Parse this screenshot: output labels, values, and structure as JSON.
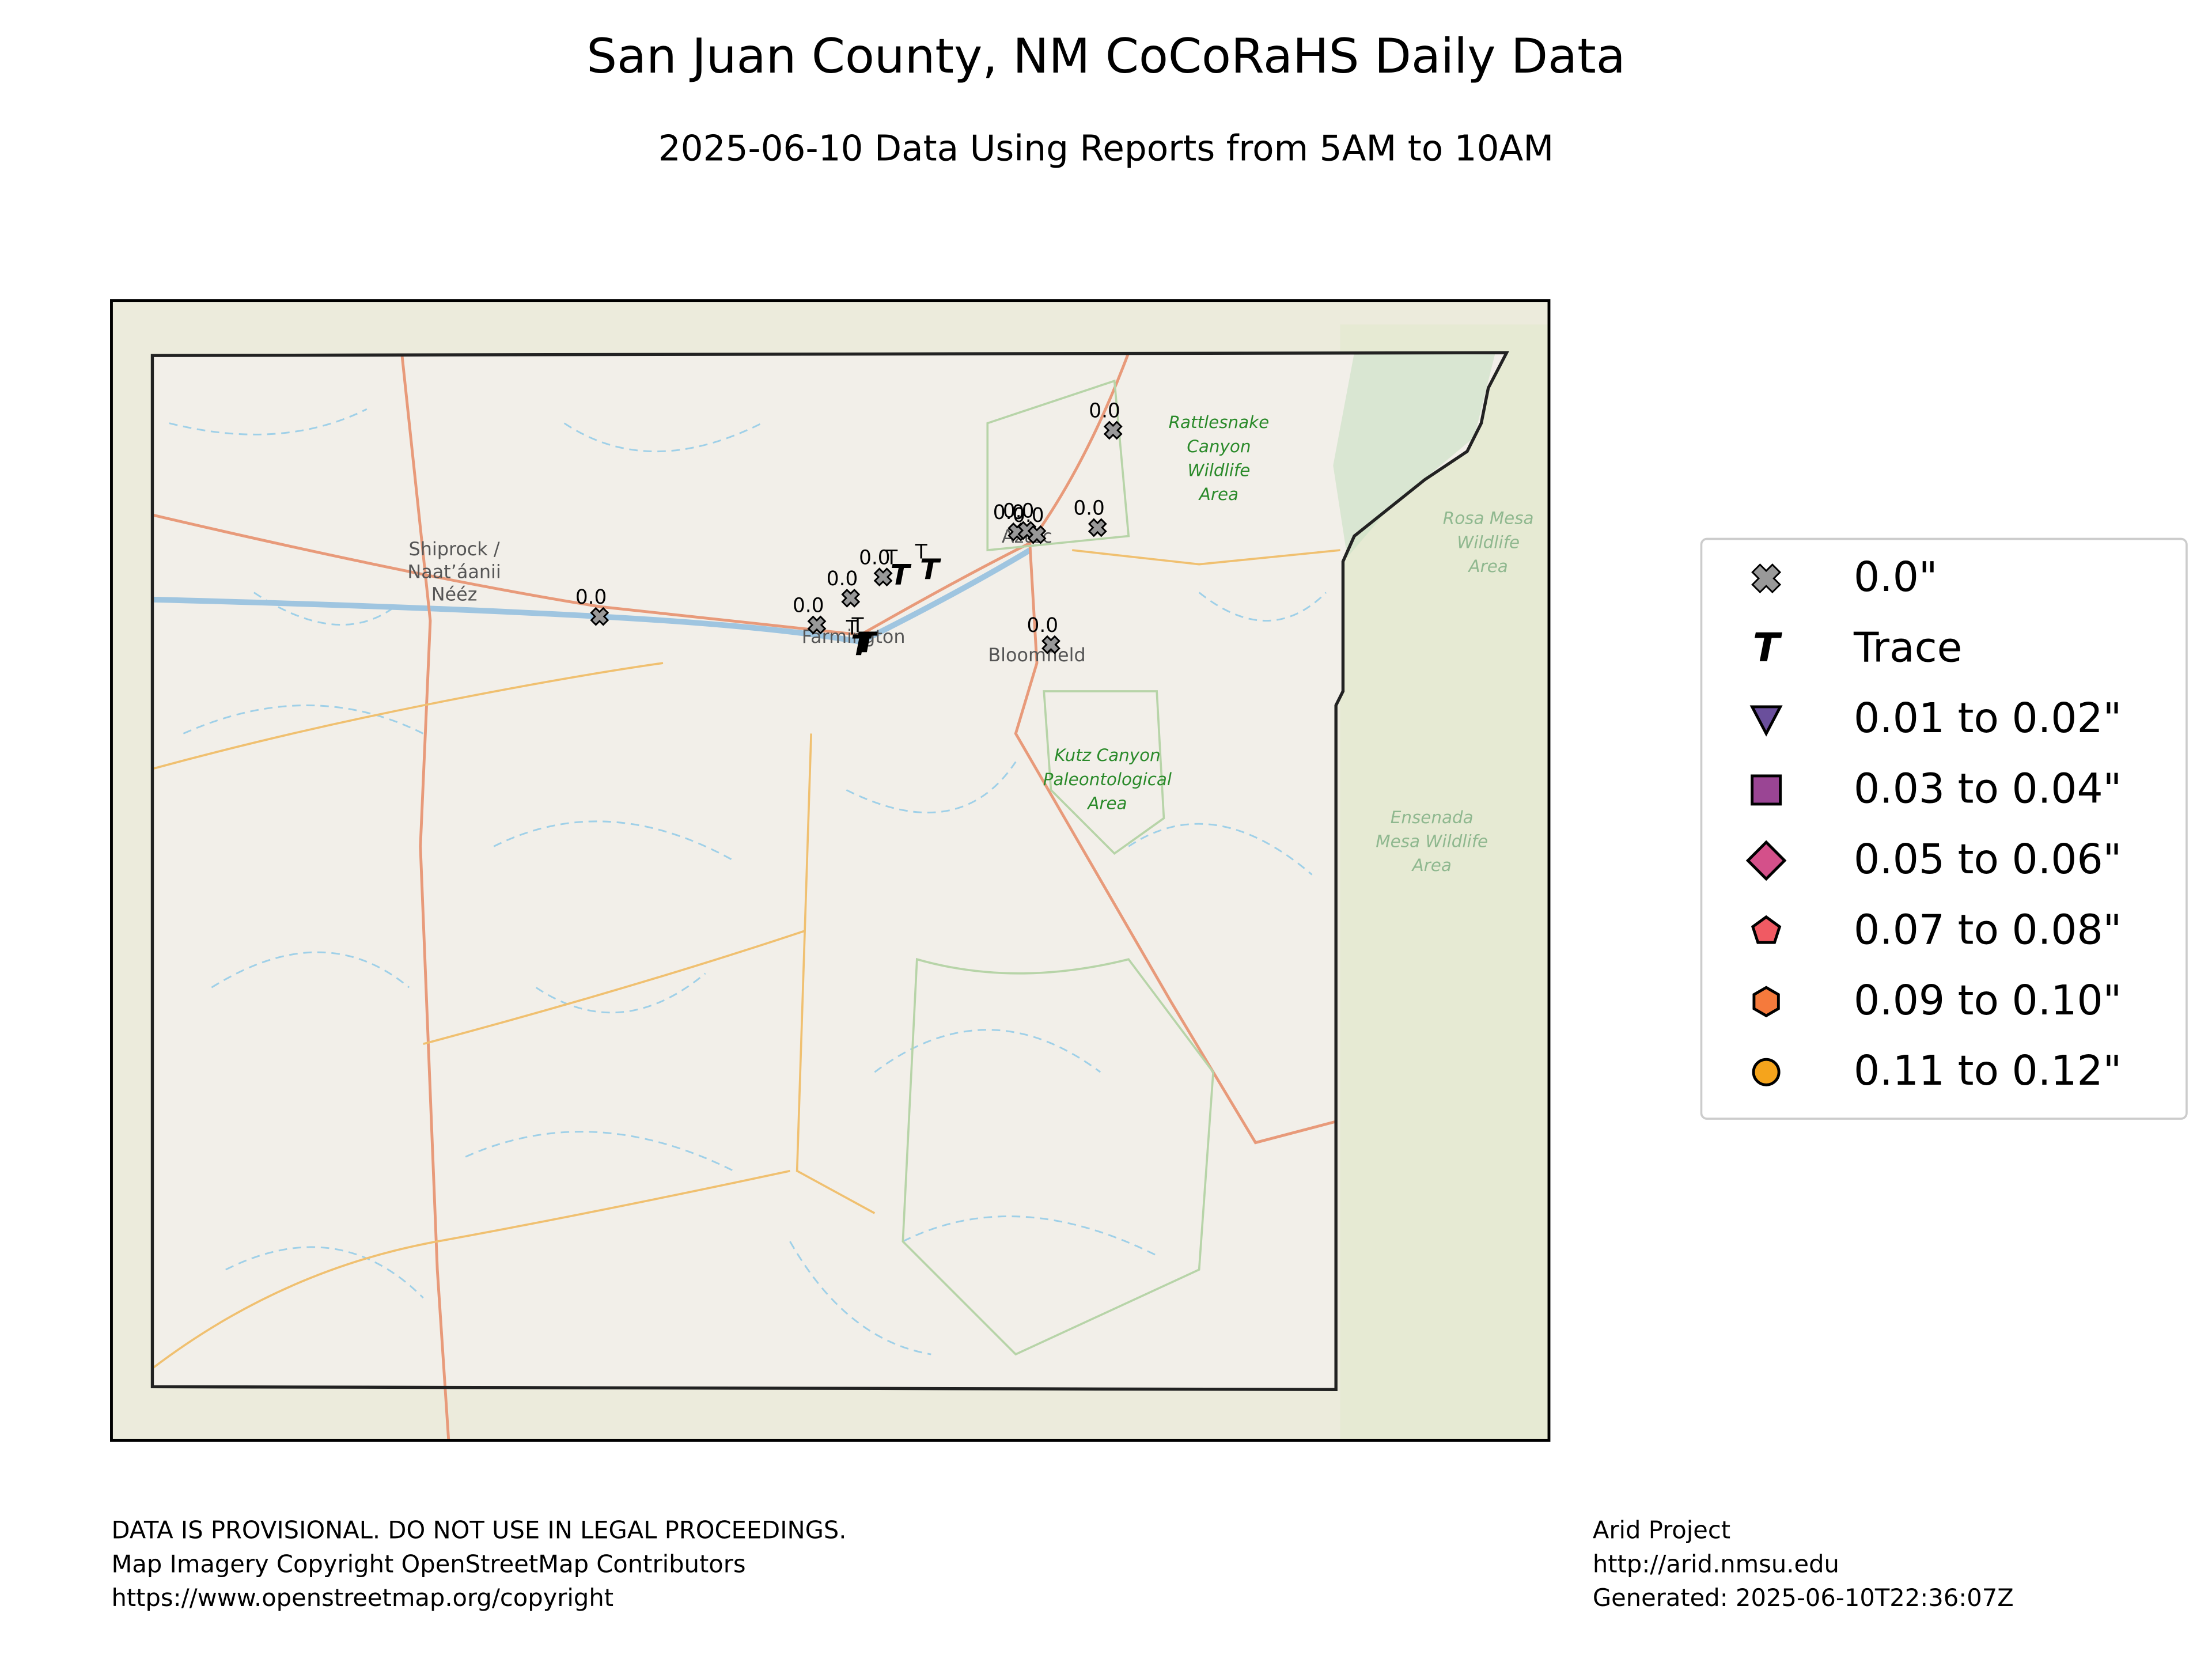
{
  "header": {
    "title": "San Juan County, NM CoCoRaHS Daily Data",
    "subtitle": "2025-06-10 Data Using Reports from 5AM to 10AM"
  },
  "legend": {
    "items": [
      {
        "label": "0.0\"",
        "shape": "x",
        "color": "#999999"
      },
      {
        "label": "Trace",
        "shape": "text",
        "glyph": "T",
        "color": "#000000"
      },
      {
        "label": "0.01 to 0.02\"",
        "shape": "triangle",
        "color": "#6a4f9c"
      },
      {
        "label": "0.03 to 0.04\"",
        "shape": "square",
        "color": "#9a4594"
      },
      {
        "label": "0.05 to 0.06\"",
        "shape": "diamond",
        "color": "#d4508a"
      },
      {
        "label": "0.07 to 0.08\"",
        "shape": "pentagon",
        "color": "#f05a63"
      },
      {
        "label": "0.09 to 0.10\"",
        "shape": "hexagon",
        "color": "#f57a3c"
      },
      {
        "label": "0.11 to 0.12\"",
        "shape": "circle",
        "color": "#f5a41c"
      }
    ]
  },
  "stations": [
    {
      "label": "0.0",
      "kind": "x"
    },
    {
      "label": "0.0",
      "kind": "x"
    },
    {
      "label": "0.0",
      "kind": "x"
    },
    {
      "label": "0.0",
      "kind": "x"
    },
    {
      "label": "T",
      "kind": "trace"
    },
    {
      "label": "T",
      "kind": "trace"
    },
    {
      "label": "T",
      "kind": "trace"
    },
    {
      "label": "T",
      "kind": "trace"
    },
    {
      "label": "0.0",
      "kind": "x"
    },
    {
      "label": "0.0",
      "kind": "x"
    },
    {
      "label": "0.0",
      "kind": "x"
    },
    {
      "label": "0.0",
      "kind": "x"
    },
    {
      "label": "0.0",
      "kind": "x"
    },
    {
      "label": "0.0",
      "kind": "x"
    }
  ],
  "places": [
    {
      "lines": [
        "Shiprock /",
        "Naat’áanii",
        "Nééz"
      ],
      "style": "place"
    },
    {
      "lines": [
        "Farmington"
      ],
      "style": "place"
    },
    {
      "lines": [
        "Aztec"
      ],
      "style": "place"
    },
    {
      "lines": [
        "Bloomfield"
      ],
      "style": "place"
    },
    {
      "lines": [
        "Rattlesnake",
        "Canyon",
        "Wildlife",
        "Area"
      ],
      "style": "park"
    },
    {
      "lines": [
        "Kutz Canyon",
        "Paleontological",
        "Area"
      ],
      "style": "park"
    },
    {
      "lines": [
        "Rosa Mesa",
        "Wildlife",
        "Area"
      ],
      "style": "park-faint"
    },
    {
      "lines": [
        "Ensenada",
        "Mesa Wildlife",
        "Area"
      ],
      "style": "park-faint"
    }
  ],
  "footer": {
    "left": [
      "DATA IS PROVISIONAL. DO NOT USE IN LEGAL PROCEEDINGS.",
      "Map Imagery Copyright OpenStreetMap Contributors",
      "https://www.openstreetmap.org/copyright"
    ],
    "right": [
      "Arid Project",
      "http://arid.nmsu.edu",
      "Generated: 2025-06-10T22:36:07Z"
    ]
  }
}
